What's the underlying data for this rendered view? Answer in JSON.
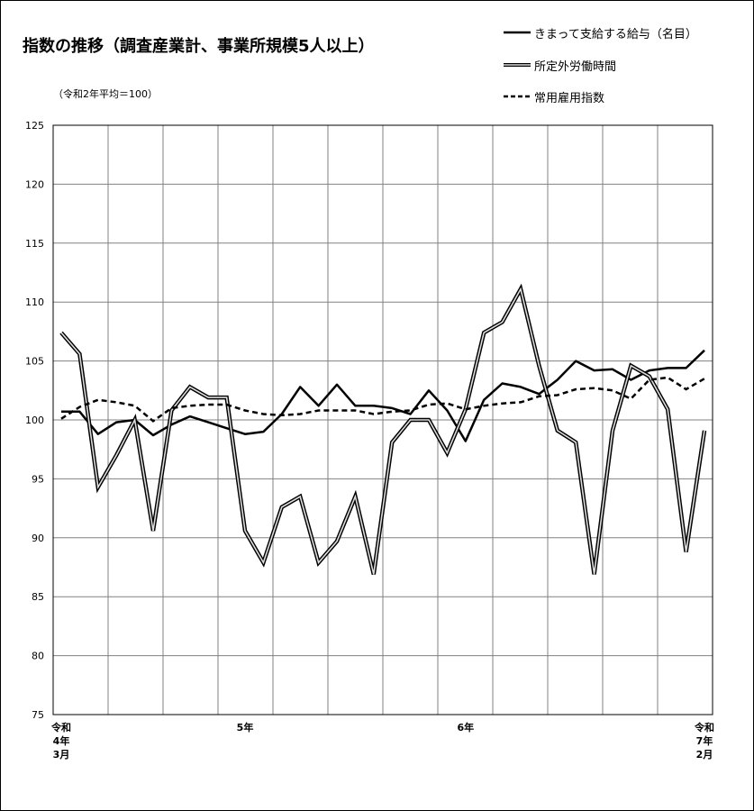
{
  "chart_data": {
    "type": "line",
    "title": "指数の推移（調査産業計、事業所規模5人以上）",
    "note": "（令和2年平均＝100）",
    "ylim": [
      75,
      125
    ],
    "y_ticks": [
      75,
      80,
      85,
      90,
      95,
      100,
      105,
      110,
      115,
      120,
      125
    ],
    "grid": true,
    "legend_position": "top-right",
    "x_tick_labels": [
      {
        "index": 0,
        "lines": [
          "令和",
          "4年",
          "3月"
        ]
      },
      {
        "index": 10,
        "lines": [
          "5年"
        ]
      },
      {
        "index": 22,
        "lines": [
          "6年"
        ]
      },
      {
        "index": 35,
        "lines": [
          "令和",
          "7年",
          "2月"
        ]
      }
    ],
    "point_count": 36,
    "series": [
      {
        "name": "きまって支給する給与（名目）",
        "style": "solid",
        "values": [
          100.7,
          100.7,
          98.8,
          99.8,
          100.0,
          98.7,
          99.6,
          100.3,
          99.8,
          99.3,
          98.8,
          99.0,
          100.5,
          102.8,
          101.2,
          103.0,
          101.2,
          101.2,
          101.0,
          100.5,
          102.5,
          100.8,
          98.2,
          101.7,
          103.1,
          102.8,
          102.2,
          103.4,
          105.0,
          104.2,
          104.3,
          103.4,
          104.2,
          104.4,
          104.4,
          105.9
        ]
      },
      {
        "name": "所定外労働時間",
        "style": "double",
        "values": [
          107.4,
          105.6,
          94.3,
          97.0,
          100.0,
          90.6,
          100.8,
          102.8,
          101.9,
          101.9,
          90.6,
          87.9,
          92.6,
          93.5,
          87.9,
          89.7,
          93.5,
          86.9,
          98.1,
          100.0,
          100.0,
          97.2,
          100.9,
          107.4,
          108.3,
          111.1,
          104.6,
          99.1,
          98.1,
          86.9,
          99.1,
          104.6,
          103.7,
          100.9,
          88.8,
          99.1
        ]
      },
      {
        "name": "常用雇用指数",
        "style": "dashed",
        "values": [
          100.1,
          101.1,
          101.7,
          101.5,
          101.2,
          99.9,
          101.0,
          101.2,
          101.3,
          101.3,
          100.8,
          100.5,
          100.4,
          100.5,
          100.8,
          100.8,
          100.8,
          100.5,
          100.7,
          100.8,
          101.3,
          101.4,
          100.9,
          101.2,
          101.4,
          101.5,
          102.0,
          102.1,
          102.6,
          102.7,
          102.5,
          101.8,
          103.4,
          103.6,
          102.6,
          103.5
        ]
      }
    ]
  }
}
